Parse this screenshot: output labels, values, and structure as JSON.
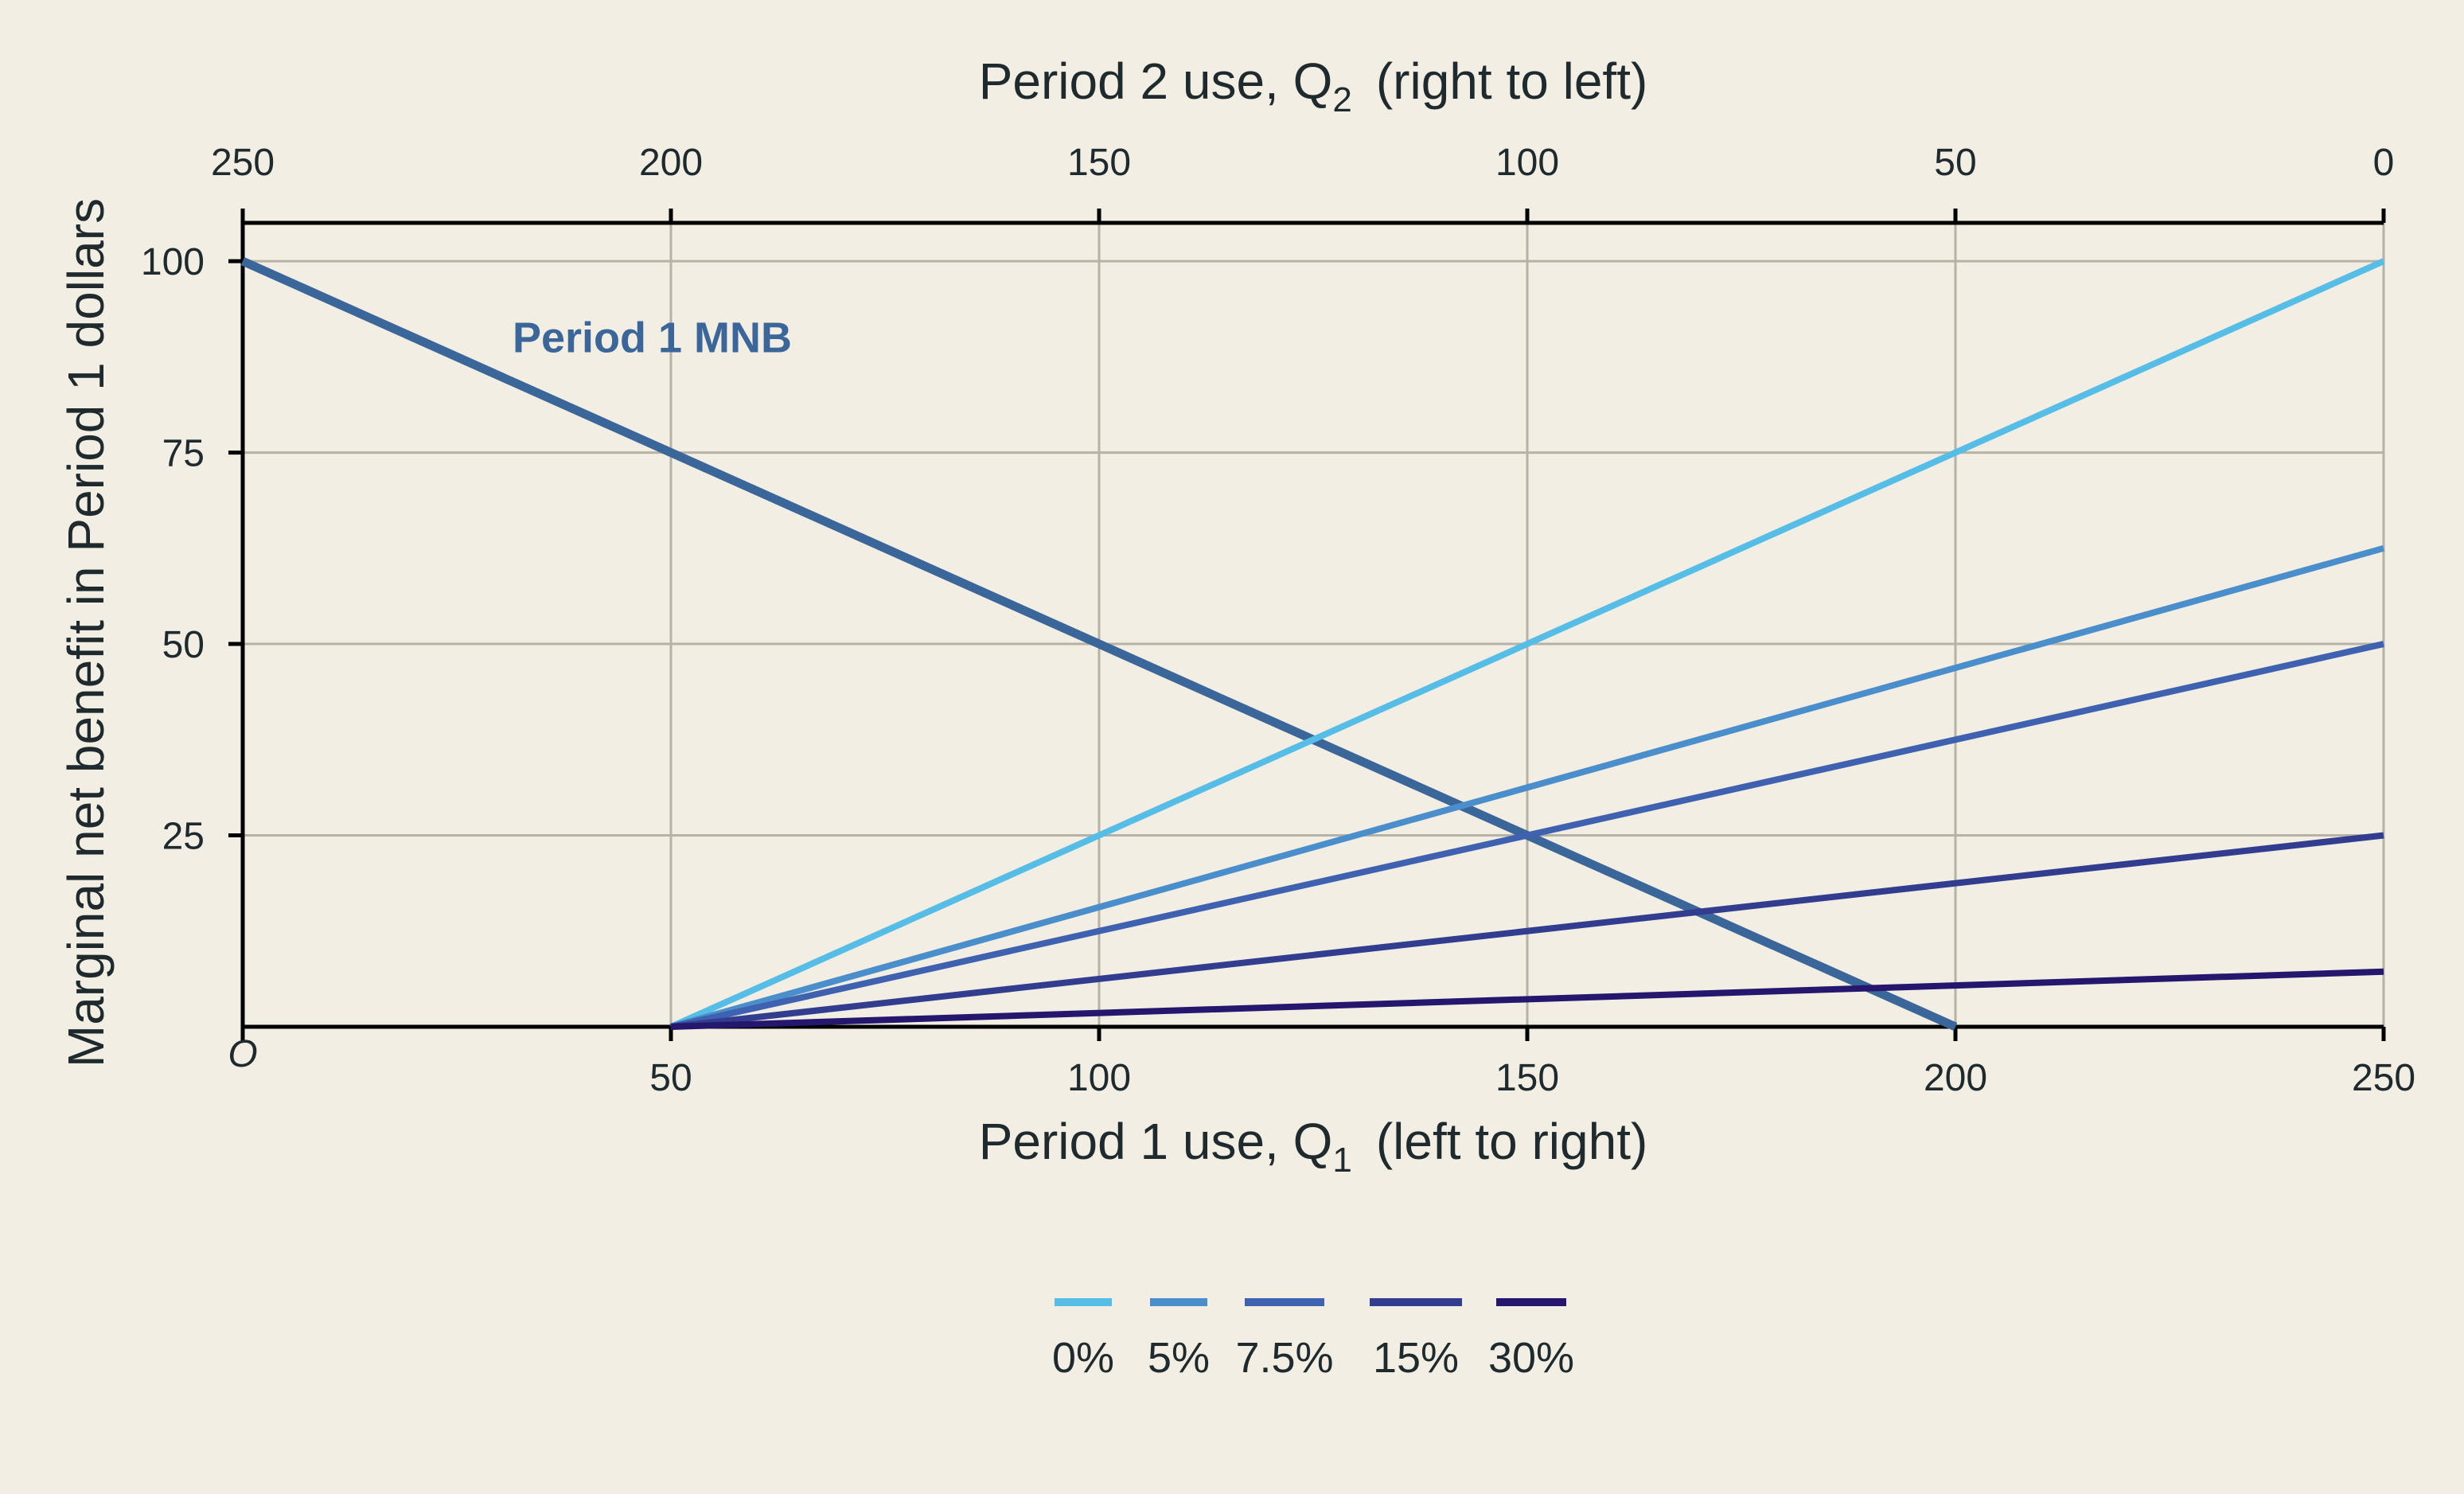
{
  "chart_data": {
    "type": "line",
    "title": "",
    "x_bottom": {
      "label_main": "Period 1 use, Q",
      "label_sub": "1",
      "label_suffix": "(left to right)",
      "range": [
        0,
        250
      ],
      "ticks": [
        0,
        50,
        100,
        150,
        200,
        250
      ],
      "tick_labels": [
        "O",
        "50",
        "100",
        "150",
        "200",
        "250"
      ]
    },
    "x_top": {
      "label_main": "Period 2 use, Q",
      "label_sub": "2",
      "label_suffix": "(right to left)",
      "tick_labels": [
        "250",
        "200",
        "150",
        "100",
        "50",
        "0"
      ]
    },
    "y": {
      "label": "Marginal net benefit in Period 1 dollars",
      "range": [
        0,
        105
      ],
      "ticks": [
        25,
        50,
        75,
        100
      ],
      "tick_labels": [
        "25",
        "50",
        "75",
        "100"
      ]
    },
    "grid": true,
    "series": [
      {
        "name": "Period 1 MNB",
        "color": "#3a6699",
        "x": [
          0,
          200
        ],
        "y": [
          100,
          0
        ]
      },
      {
        "name": "0%",
        "color": "#56bde7",
        "x": [
          50,
          250
        ],
        "y": [
          0,
          100
        ]
      },
      {
        "name": "5%",
        "color": "#4a8fcb",
        "x": [
          50,
          250
        ],
        "y": [
          0,
          62.5
        ]
      },
      {
        "name": "7.5%",
        "color": "#3f62b0",
        "x": [
          50,
          250
        ],
        "y": [
          0,
          50
        ]
      },
      {
        "name": "15%",
        "color": "#333d8f",
        "x": [
          50,
          250
        ],
        "y": [
          0,
          25
        ]
      },
      {
        "name": "30%",
        "color": "#25176d",
        "x": [
          50,
          250
        ],
        "y": [
          0,
          7.2
        ]
      }
    ],
    "annotations": [
      {
        "text": "Period 1 MNB",
        "color": "#3a6699",
        "x": 31.5,
        "y": 90
      }
    ],
    "legend": {
      "placement": "bottom-center",
      "items": [
        "0%",
        "5%",
        "7.5%",
        "15%",
        "30%"
      ]
    }
  }
}
